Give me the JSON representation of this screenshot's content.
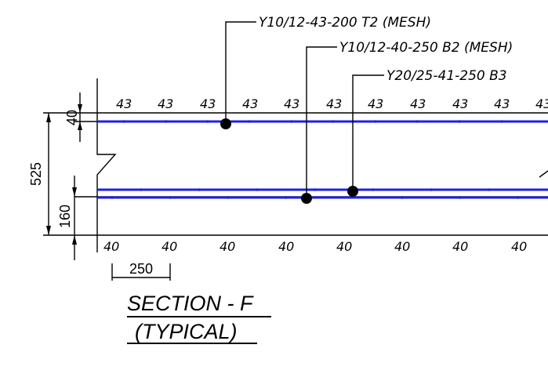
{
  "annotations": {
    "top_mesh": "Y10/12-43-200 T2 (MESH)",
    "bottom_mesh": "Y10/12-40-250 B2 (MESH)",
    "bottom_bars": "Y20/25-41-250 B3"
  },
  "top_cover_labels": [
    "43",
    "43",
    "43",
    "43",
    "43",
    "43",
    "43",
    "43",
    "43",
    "43",
    "43"
  ],
  "bottom_cover_labels": [
    "40",
    "40",
    "40",
    "40",
    "40",
    "40",
    "40",
    "40"
  ],
  "dimensions": {
    "top_offset": "40",
    "total_depth": "525",
    "bottom_offset": "160",
    "spacing": "250"
  },
  "title": {
    "line1": "SECTION - F",
    "line2": "(TYPICAL)"
  },
  "colors": {
    "rebar": "#1f1fe6",
    "lines": "#000000"
  }
}
